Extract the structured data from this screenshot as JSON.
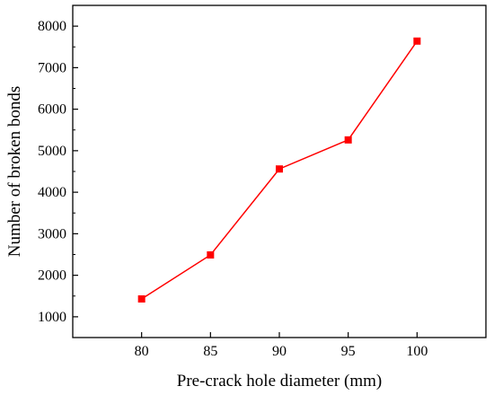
{
  "chart_data": {
    "type": "line",
    "title": "",
    "xlabel": "Pre-crack hole diameter (mm)",
    "ylabel": "Number of broken bonds",
    "x": [
      80,
      85,
      90,
      95,
      100
    ],
    "xticks": [
      "80",
      "85",
      "90",
      "95",
      "100"
    ],
    "xlim": [
      75,
      105
    ],
    "ylim": [
      500,
      8500
    ],
    "yticks": [
      "1000",
      "2000",
      "3000",
      "4000",
      "5000",
      "6000",
      "7000",
      "8000"
    ],
    "series": [
      {
        "name": "",
        "values": [
          1430,
          2490,
          4560,
          5260,
          7640
        ],
        "color": "#ff0000",
        "marker": "square"
      }
    ],
    "grid": false,
    "legend": "none"
  }
}
